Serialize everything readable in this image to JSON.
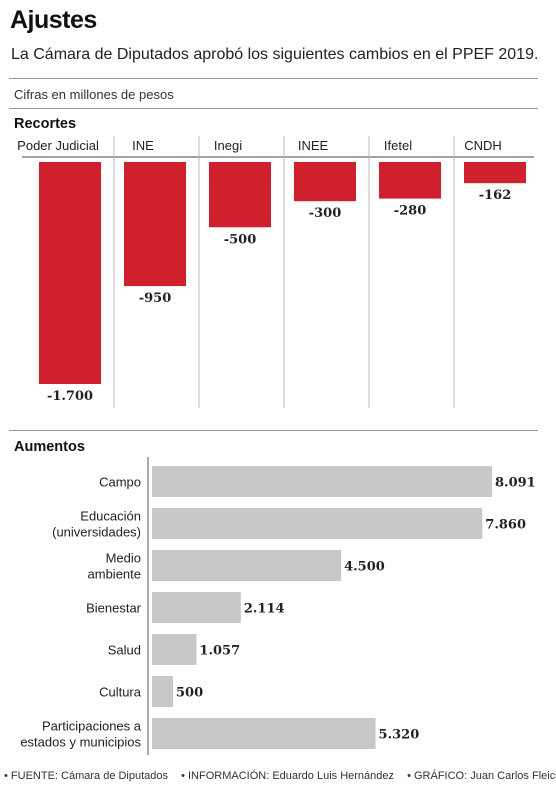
{
  "title": "Ajustes",
  "subtitle": "La Cámara de Diputados aprobó los siguientes cambios en el PPEF 2019.",
  "units": "Cifras en millones de pesos",
  "footer": {
    "fuente": "• FUENTE: Cámara de Diputados",
    "informacion": "• INFORMACIÓN: Eduardo Luis Hernández",
    "grafico": "• GRÁFICO: Juan Carlos Fleicer"
  },
  "chart_data": [
    {
      "type": "bar",
      "title": "Recortes",
      "categories": [
        "Poder Judicial",
        "INE",
        "Inegi",
        "INEE",
        "Ifetel",
        "CNDH"
      ],
      "values": [
        -1700,
        -950,
        -500,
        -300,
        -280,
        -162
      ],
      "value_labels": [
        "-1.700",
        "-950",
        "-500",
        "-300",
        "-280",
        "-162"
      ],
      "orientation": "vertical",
      "color": "#d0202e"
    },
    {
      "type": "bar",
      "title": "Aumentos",
      "categories": [
        [
          "Campo"
        ],
        [
          "Educación",
          "(universidades)"
        ],
        [
          "Medio",
          "ambiente"
        ],
        [
          "Bienestar"
        ],
        [
          "Salud"
        ],
        [
          "Cultura"
        ],
        [
          "Participaciones a",
          "estados y municipios"
        ]
      ],
      "values": [
        8091,
        7860,
        4500,
        2114,
        1057,
        500,
        5320
      ],
      "value_labels": [
        "8.091",
        "7.860",
        "4.500",
        "2.114",
        "1.057",
        "500",
        "5.320"
      ],
      "orientation": "horizontal",
      "color": "#c8c8c8"
    }
  ]
}
